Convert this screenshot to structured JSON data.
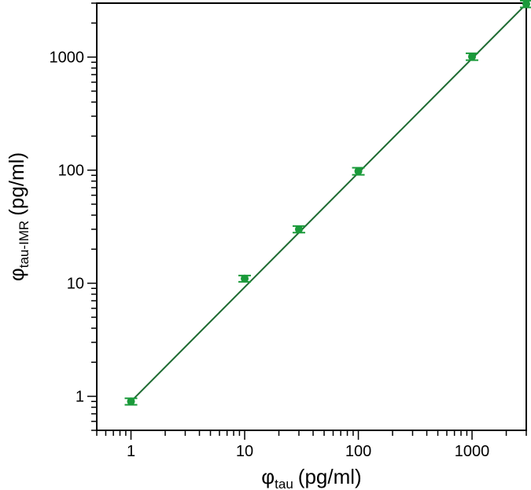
{
  "chart_data": {
    "type": "scatter",
    "xlabel": {
      "symbol": "φ",
      "subscript": "tau",
      "unit": "(pg/ml)"
    },
    "ylabel": {
      "symbol": "φ",
      "subscript": "tau-IMR",
      "unit": "(pg/ml)"
    },
    "xscale": "log",
    "yscale": "log",
    "xlim": [
      0.5,
      3000
    ],
    "ylim": [
      0.5,
      3000
    ],
    "xticks": [
      {
        "value": 1,
        "label": "1"
      },
      {
        "value": 10,
        "label": "10"
      },
      {
        "value": 100,
        "label": "100"
      },
      {
        "value": 1000,
        "label": "1000"
      }
    ],
    "yticks": [
      {
        "value": 1,
        "label": "1"
      },
      {
        "value": 10,
        "label": "10"
      },
      {
        "value": 100,
        "label": "100"
      },
      {
        "value": 1000,
        "label": "1000"
      }
    ],
    "grid": false,
    "color": "#1a9a3a",
    "fit_line_color": "#1e6b32",
    "series": [
      {
        "points": [
          {
            "x": 1,
            "y": 0.9,
            "err": 0.06
          },
          {
            "x": 10,
            "y": 11,
            "err": 0.7
          },
          {
            "x": 30,
            "y": 30,
            "err": 2
          },
          {
            "x": 100,
            "y": 98,
            "err": 7
          },
          {
            "x": 1000,
            "y": 1010,
            "err": 70
          },
          {
            "x": 3000,
            "y": 2950,
            "err": 200
          }
        ]
      }
    ],
    "fit_line": {
      "x": [
        1,
        3000
      ],
      "y": [
        0.9,
        2950
      ]
    }
  }
}
